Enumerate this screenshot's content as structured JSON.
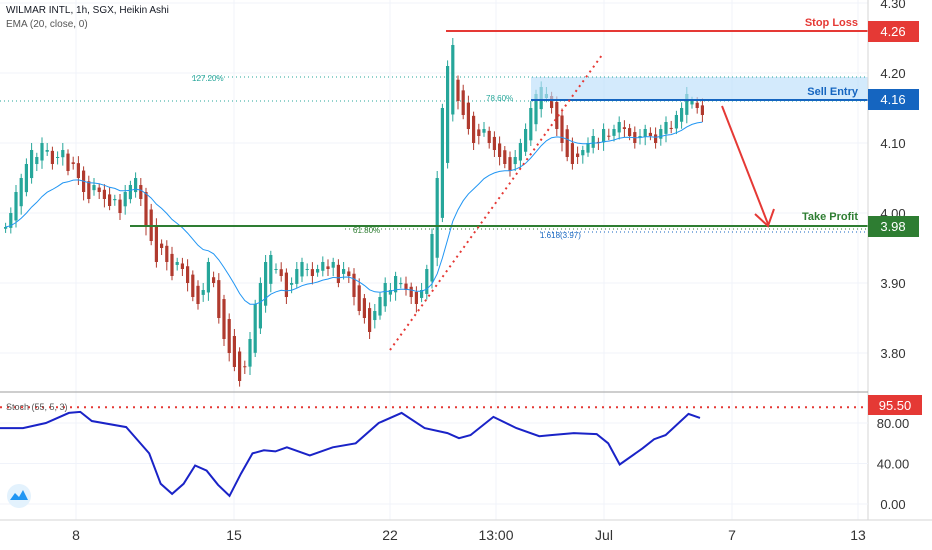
{
  "header": {
    "symbol_line": "WILMAR INTL, 1h, SGX, Heikin Ashi",
    "ema_line": "EMA (20, close, 0)",
    "stoch_label": "Stoch (55, 5, 3)"
  },
  "colors": {
    "up": "#26a69a",
    "down": "#b03a2e",
    "ema": "#2196f3",
    "stop": "#e53935",
    "entry": "#1565c0",
    "profit": "#2e7d32",
    "stoch": "#1a23c7",
    "zone": "#bbdefb"
  },
  "chart_data": [
    {
      "type": "candlestick",
      "title": "WILMAR INTL, 1h, SGX, Heikin Ashi",
      "ylim": [
        3.73,
        4.28
      ],
      "y_ticks": [
        "4.30",
        "4.20",
        "4.10",
        "4.00",
        "3.90",
        "3.80"
      ],
      "x_ticks": [
        "8",
        "15",
        "22",
        "13:00",
        "Jul",
        "7",
        "13"
      ],
      "candles_close": [
        3.98,
        4.0,
        4.03,
        4.05,
        4.07,
        4.09,
        4.08,
        4.1,
        4.09,
        4.07,
        4.08,
        4.09,
        4.06,
        4.07,
        4.05,
        4.03,
        4.02,
        4.04,
        4.03,
        4.02,
        4.01,
        4.02,
        4.0,
        4.03,
        4.04,
        4.05,
        4.02,
        3.98,
        3.96,
        3.93,
        3.95,
        3.93,
        3.91,
        3.93,
        3.92,
        3.9,
        3.88,
        3.87,
        3.89,
        3.93,
        3.9,
        3.85,
        3.82,
        3.8,
        3.78,
        3.76,
        3.78,
        3.82,
        3.87,
        3.9,
        3.93,
        3.94,
        3.92,
        3.91,
        3.88,
        3.9,
        3.92,
        3.93,
        3.92,
        3.91,
        3.92,
        3.93,
        3.92,
        3.93,
        3.9,
        3.92,
        3.91,
        3.88,
        3.86,
        3.85,
        3.83,
        3.86,
        3.88,
        3.9,
        3.89,
        3.91,
        3.9,
        3.89,
        3.88,
        3.87,
        3.89,
        3.92,
        3.97,
        4.05,
        4.15,
        4.21,
        4.24,
        4.16,
        4.14,
        4.12,
        4.1,
        4.11,
        4.12,
        4.1,
        4.09,
        4.08,
        4.07,
        4.06,
        4.08,
        4.1,
        4.12,
        4.15,
        4.17,
        4.18,
        4.17,
        4.15,
        4.12,
        4.1,
        4.08,
        4.07,
        4.08,
        4.09,
        4.1,
        4.11,
        4.1,
        4.12,
        4.11,
        4.12,
        4.13,
        4.12,
        4.11,
        4.1,
        4.11,
        4.12,
        4.11,
        4.1,
        4.12,
        4.13,
        4.12,
        4.14,
        4.15,
        4.17,
        4.16,
        4.15,
        4.14
      ],
      "ema_label": "EMA (20, close, 0)",
      "annotations": [
        {
          "label": "Stop Loss",
          "value": "4.26"
        },
        {
          "label": "Sell Entry",
          "value": "4.16"
        },
        {
          "label": "Take Profit",
          "value": "3.98"
        },
        {
          "label": "127.20%",
          "level": 4.193
        },
        {
          "label": "78.60%",
          "level": 4.164
        },
        {
          "label": "61.80%",
          "level": 3.977
        },
        {
          "label": "1.618(3.97)",
          "level": 3.97
        }
      ]
    },
    {
      "type": "line",
      "title": "Stoch (55, 5, 3)",
      "ylim": [
        -5,
        105
      ],
      "y_ticks": [
        "80.00",
        "40.00",
        "0.00"
      ],
      "level_label": "95.50",
      "level": 95.5,
      "points": [
        [
          0,
          75
        ],
        [
          2,
          75
        ],
        [
          4,
          80
        ],
        [
          6,
          90
        ],
        [
          7,
          91
        ],
        [
          8,
          82
        ],
        [
          11,
          76
        ],
        [
          13,
          50
        ],
        [
          14,
          20
        ],
        [
          15,
          10
        ],
        [
          16,
          20
        ],
        [
          17,
          38
        ],
        [
          18,
          33
        ],
        [
          19,
          19
        ],
        [
          20,
          8
        ],
        [
          21,
          30
        ],
        [
          22,
          50
        ],
        [
          23,
          53
        ],
        [
          24,
          52
        ],
        [
          25,
          56
        ],
        [
          27,
          48
        ],
        [
          29,
          56
        ],
        [
          31,
          60
        ],
        [
          33,
          80
        ],
        [
          35,
          90
        ],
        [
          37,
          75
        ],
        [
          39,
          70
        ],
        [
          40,
          65
        ],
        [
          41,
          68
        ],
        [
          43,
          86
        ],
        [
          45,
          75
        ],
        [
          47,
          67
        ],
        [
          48,
          68
        ],
        [
          50,
          70
        ],
        [
          52,
          69
        ],
        [
          53,
          60
        ],
        [
          54,
          39
        ],
        [
          56,
          55
        ],
        [
          57,
          64
        ],
        [
          58,
          68
        ],
        [
          60,
          89
        ],
        [
          61,
          85
        ]
      ]
    }
  ]
}
